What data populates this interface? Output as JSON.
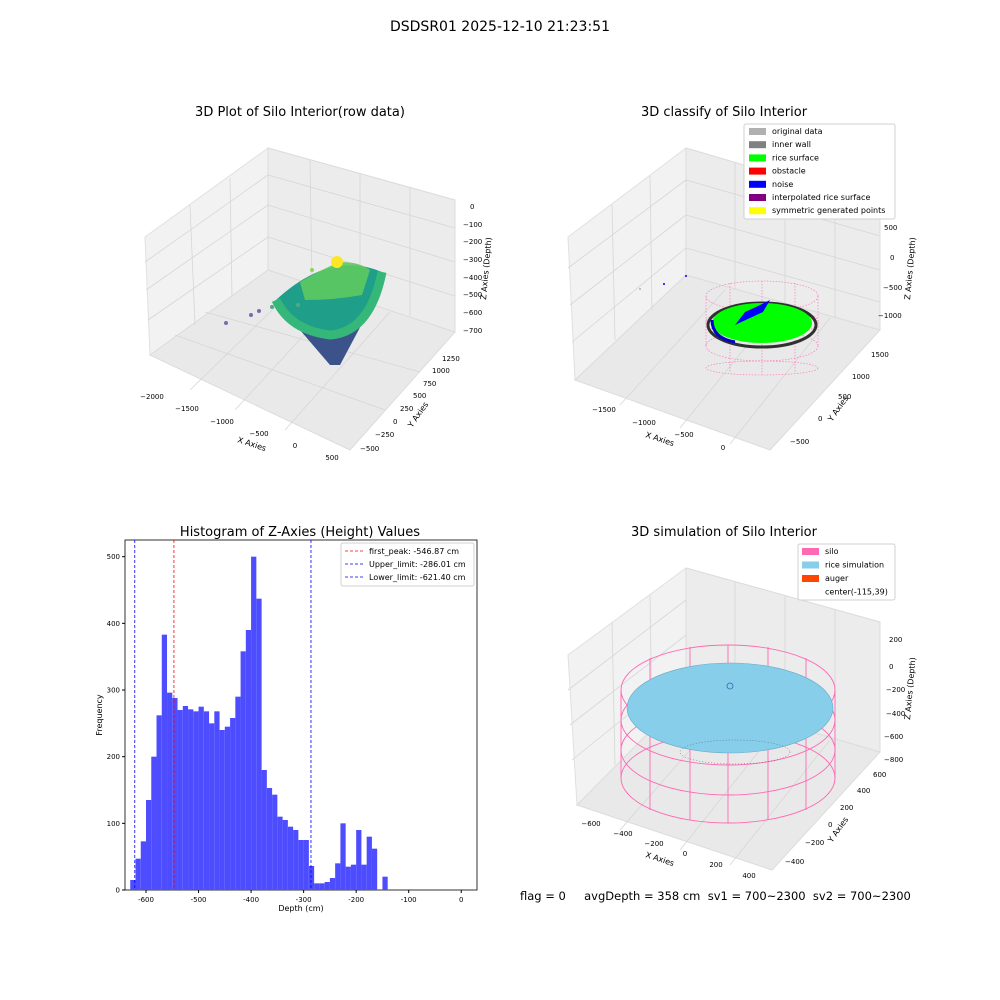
{
  "suptitle": "DSDSR01 2025-12-10 21:23:51",
  "status_text": "flag = 0     avgDepth = 358 cm  sv1 = 700~2300  sv2 = 700~2300",
  "colors": {
    "hist_bar": "#4d4dff",
    "first_peak_line": "#ff0000",
    "limit_line": "#0000ff",
    "silo": "#ff69b4",
    "rice": "#87ceeb",
    "rice_surface": "#00ff00",
    "noise": "#0000dd"
  },
  "chart_data": [
    {
      "type": "scatter3d",
      "title": "3D Plot of Silo Interior(row data)",
      "xlabel": "X Axies",
      "ylabel": "Y Axies",
      "zlabel": "Z Axies (Depth)",
      "xticks": [
        "−2000",
        "−1500",
        "−1000",
        "−500",
        "0",
        "500"
      ],
      "yticks": [
        "−500",
        "−250",
        "0",
        "250",
        "500",
        "750",
        "1000",
        "1250"
      ],
      "zticks": [
        "0",
        "−100",
        "−200",
        "−300",
        "−400",
        "−500",
        "−600",
        "−700"
      ],
      "colormap": "viridis"
    },
    {
      "type": "scatter3d",
      "title": "3D classify of Silo Interior",
      "xlabel": "X Axies",
      "ylabel": "Y Axies",
      "zlabel": "Z Axies (Depth)",
      "xticks": [
        "−1500",
        "−1000",
        "−500",
        "0"
      ],
      "yticks": [
        "−500",
        "0",
        "500",
        "1000",
        "1500"
      ],
      "zticks": [
        "500",
        "0",
        "−500",
        "−1000"
      ],
      "legend_position": "top-right",
      "legend": [
        {
          "label": "original data",
          "color": "#b0b0b0"
        },
        {
          "label": "inner wall",
          "color": "#808080"
        },
        {
          "label": "rice surface",
          "color": "#00ff00"
        },
        {
          "label": "obstacle",
          "color": "#ff0000"
        },
        {
          "label": "noise",
          "color": "#0000ff"
        },
        {
          "label": "interpolated rice surface",
          "color": "#800080"
        },
        {
          "label": "symmetric generated points",
          "color": "#ffff00"
        }
      ]
    },
    {
      "type": "bar",
      "title": "Histogram of Z-Axies (Height) Values",
      "xlabel": "Depth (cm)",
      "ylabel": "Frequency",
      "xlim": [
        -640,
        30
      ],
      "ylim": [
        0,
        525
      ],
      "xticks": [
        -600,
        -500,
        -400,
        -300,
        -200,
        -100,
        0
      ],
      "yticks": [
        0,
        100,
        200,
        300,
        400,
        500
      ],
      "bin_start": -630,
      "bin_width": 10,
      "values": [
        15,
        47,
        73,
        135,
        200,
        262,
        383,
        296,
        288,
        270,
        276,
        271,
        268,
        275,
        268,
        250,
        268,
        240,
        245,
        258,
        290,
        358,
        390,
        500,
        437,
        180,
        153,
        143,
        110,
        105,
        95,
        90,
        75,
        75,
        36,
        10,
        10,
        12,
        18,
        40,
        100,
        35,
        38,
        90,
        38,
        80,
        62,
        0,
        20
      ],
      "vlines": [
        {
          "label": "first_peak: -546.87 cm",
          "x": -546.87,
          "color": "#ff0000"
        },
        {
          "label": "Upper_limit: -286.01 cm",
          "x": -286.01,
          "color": "#0000ff"
        },
        {
          "label": "Lower_limit: -621.40 cm",
          "x": -621.4,
          "color": "#0000ff"
        }
      ],
      "legend_position": "top-right"
    },
    {
      "type": "surface3d",
      "title": "3D simulation of Silo Interior",
      "xlabel": "X Axies",
      "ylabel": "Y Axies",
      "zlabel": "Z Axies (Depth)",
      "xticks": [
        "−600",
        "−400",
        "−200",
        "0",
        "200",
        "400"
      ],
      "yticks": [
        "−400",
        "−200",
        "0",
        "200",
        "400",
        "600"
      ],
      "zticks": [
        "200",
        "0",
        "−200",
        "−400",
        "−600",
        "−800"
      ],
      "legend_position": "top-right",
      "legend": [
        {
          "label": "silo",
          "color": "#ff69b4"
        },
        {
          "label": "rice simulation",
          "color": "#87ceeb"
        },
        {
          "label": "auger",
          "color": "#ff4500"
        },
        {
          "label": "center(-115,39)",
          "color": ""
        }
      ]
    }
  ]
}
